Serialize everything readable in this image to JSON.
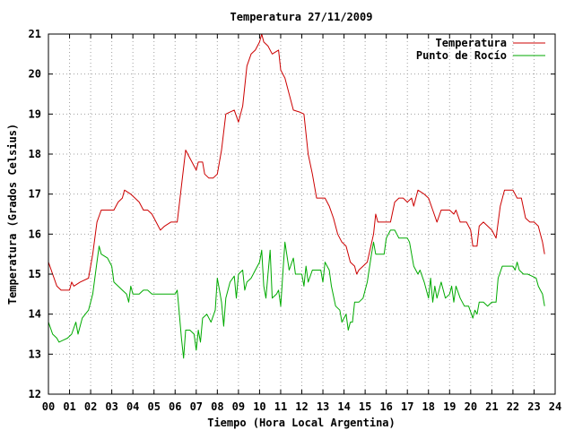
{
  "chart_data": {
    "type": "line",
    "title": "Temperatura 27/11/2009",
    "xlabel": "Tiempo (Hora Local Argentina)",
    "ylabel": "Temperatura (Grados Celsius)",
    "xlim": [
      0,
      24
    ],
    "ylim": [
      12,
      21
    ],
    "x_ticks": [
      "00",
      "01",
      "02",
      "03",
      "04",
      "05",
      "06",
      "07",
      "08",
      "09",
      "10",
      "11",
      "12",
      "13",
      "14",
      "15",
      "16",
      "17",
      "18",
      "19",
      "20",
      "21",
      "22",
      "23",
      "24"
    ],
    "y_ticks": [
      "12",
      "13",
      "14",
      "15",
      "16",
      "17",
      "18",
      "19",
      "20",
      "21"
    ],
    "grid": true,
    "legend_position": "top-right",
    "series": [
      {
        "name": "Temperatura",
        "color": "#cc0000",
        "points": [
          [
            0.0,
            15.3
          ],
          [
            0.2,
            15.0
          ],
          [
            0.4,
            14.7
          ],
          [
            0.6,
            14.6
          ],
          [
            1.0,
            14.6
          ],
          [
            1.1,
            14.8
          ],
          [
            1.2,
            14.7
          ],
          [
            1.5,
            14.8
          ],
          [
            1.9,
            14.9
          ],
          [
            2.1,
            15.5
          ],
          [
            2.3,
            16.3
          ],
          [
            2.5,
            16.6
          ],
          [
            2.9,
            16.6
          ],
          [
            3.1,
            16.6
          ],
          [
            3.3,
            16.8
          ],
          [
            3.5,
            16.9
          ],
          [
            3.6,
            17.1
          ],
          [
            3.9,
            17.0
          ],
          [
            4.1,
            16.9
          ],
          [
            4.3,
            16.8
          ],
          [
            4.5,
            16.6
          ],
          [
            4.7,
            16.6
          ],
          [
            4.9,
            16.5
          ],
          [
            5.1,
            16.3
          ],
          [
            5.3,
            16.1
          ],
          [
            5.5,
            16.2
          ],
          [
            5.8,
            16.3
          ],
          [
            6.1,
            16.3
          ],
          [
            6.3,
            17.2
          ],
          [
            6.5,
            18.1
          ],
          [
            6.7,
            17.9
          ],
          [
            6.9,
            17.7
          ],
          [
            7.0,
            17.6
          ],
          [
            7.1,
            17.8
          ],
          [
            7.3,
            17.8
          ],
          [
            7.4,
            17.5
          ],
          [
            7.6,
            17.4
          ],
          [
            7.8,
            17.4
          ],
          [
            8.0,
            17.5
          ],
          [
            8.2,
            18.1
          ],
          [
            8.4,
            19.0
          ],
          [
            8.6,
            19.05
          ],
          [
            8.8,
            19.1
          ],
          [
            9.0,
            18.8
          ],
          [
            9.2,
            19.2
          ],
          [
            9.4,
            20.2
          ],
          [
            9.6,
            20.5
          ],
          [
            9.8,
            20.6
          ],
          [
            10.0,
            20.8
          ],
          [
            10.1,
            21.0
          ],
          [
            10.2,
            20.8
          ],
          [
            10.4,
            20.7
          ],
          [
            10.6,
            20.5
          ],
          [
            10.9,
            20.6
          ],
          [
            11.0,
            20.1
          ],
          [
            11.2,
            19.9
          ],
          [
            11.4,
            19.5
          ],
          [
            11.6,
            19.1
          ],
          [
            11.9,
            19.05
          ],
          [
            12.1,
            19.0
          ],
          [
            12.3,
            18.0
          ],
          [
            12.5,
            17.5
          ],
          [
            12.7,
            16.9
          ],
          [
            13.1,
            16.9
          ],
          [
            13.3,
            16.7
          ],
          [
            13.5,
            16.4
          ],
          [
            13.7,
            16.0
          ],
          [
            13.9,
            15.8
          ],
          [
            14.1,
            15.7
          ],
          [
            14.3,
            15.3
          ],
          [
            14.5,
            15.2
          ],
          [
            14.6,
            15.0
          ],
          [
            14.7,
            15.1
          ],
          [
            14.9,
            15.2
          ],
          [
            15.1,
            15.3
          ],
          [
            15.4,
            16.0
          ],
          [
            15.5,
            16.5
          ],
          [
            15.6,
            16.3
          ],
          [
            16.0,
            16.3
          ],
          [
            16.2,
            16.3
          ],
          [
            16.4,
            16.8
          ],
          [
            16.6,
            16.9
          ],
          [
            16.8,
            16.9
          ],
          [
            17.0,
            16.8
          ],
          [
            17.2,
            16.9
          ],
          [
            17.3,
            16.7
          ],
          [
            17.5,
            17.1
          ],
          [
            17.8,
            17.0
          ],
          [
            18.0,
            16.9
          ],
          [
            18.2,
            16.6
          ],
          [
            18.4,
            16.3
          ],
          [
            18.6,
            16.6
          ],
          [
            19.0,
            16.6
          ],
          [
            19.2,
            16.5
          ],
          [
            19.3,
            16.6
          ],
          [
            19.5,
            16.3
          ],
          [
            19.8,
            16.3
          ],
          [
            20.0,
            16.1
          ],
          [
            20.1,
            15.7
          ],
          [
            20.3,
            15.7
          ],
          [
            20.4,
            16.2
          ],
          [
            20.6,
            16.3
          ],
          [
            20.8,
            16.2
          ],
          [
            21.0,
            16.1
          ],
          [
            21.2,
            15.9
          ],
          [
            21.4,
            16.7
          ],
          [
            21.6,
            17.1
          ],
          [
            21.8,
            17.1
          ],
          [
            22.0,
            17.1
          ],
          [
            22.2,
            16.9
          ],
          [
            22.4,
            16.9
          ],
          [
            22.6,
            16.4
          ],
          [
            22.8,
            16.3
          ],
          [
            23.0,
            16.3
          ],
          [
            23.2,
            16.2
          ],
          [
            23.3,
            16.0
          ],
          [
            23.4,
            15.8
          ],
          [
            23.5,
            15.5
          ]
        ]
      },
      {
        "name": "Punto de Rocío",
        "color": "#00aa00",
        "points": [
          [
            0.0,
            13.8
          ],
          [
            0.2,
            13.5
          ],
          [
            0.4,
            13.4
          ],
          [
            0.5,
            13.3
          ],
          [
            0.7,
            13.35
          ],
          [
            0.9,
            13.4
          ],
          [
            1.1,
            13.5
          ],
          [
            1.3,
            13.8
          ],
          [
            1.4,
            13.5
          ],
          [
            1.6,
            13.9
          ],
          [
            1.9,
            14.1
          ],
          [
            2.1,
            14.5
          ],
          [
            2.3,
            15.3
          ],
          [
            2.4,
            15.7
          ],
          [
            2.5,
            15.5
          ],
          [
            2.8,
            15.4
          ],
          [
            3.0,
            15.2
          ],
          [
            3.1,
            14.8
          ],
          [
            3.3,
            14.7
          ],
          [
            3.5,
            14.6
          ],
          [
            3.7,
            14.5
          ],
          [
            3.8,
            14.3
          ],
          [
            3.9,
            14.7
          ],
          [
            4.0,
            14.5
          ],
          [
            4.3,
            14.5
          ],
          [
            4.5,
            14.6
          ],
          [
            4.7,
            14.6
          ],
          [
            4.9,
            14.5
          ],
          [
            5.1,
            14.5
          ],
          [
            5.5,
            14.5
          ],
          [
            6.0,
            14.5
          ],
          [
            6.1,
            14.6
          ],
          [
            6.2,
            14.0
          ],
          [
            6.3,
            13.4
          ],
          [
            6.4,
            12.9
          ],
          [
            6.5,
            13.6
          ],
          [
            6.7,
            13.6
          ],
          [
            6.9,
            13.5
          ],
          [
            7.0,
            13.1
          ],
          [
            7.1,
            13.6
          ],
          [
            7.2,
            13.3
          ],
          [
            7.3,
            13.9
          ],
          [
            7.5,
            14.0
          ],
          [
            7.7,
            13.8
          ],
          [
            7.9,
            14.1
          ],
          [
            8.0,
            14.9
          ],
          [
            8.1,
            14.6
          ],
          [
            8.2,
            14.3
          ],
          [
            8.3,
            13.7
          ],
          [
            8.4,
            14.4
          ],
          [
            8.6,
            14.8
          ],
          [
            8.8,
            14.95
          ],
          [
            8.9,
            14.4
          ],
          [
            9.0,
            15.0
          ],
          [
            9.2,
            15.1
          ],
          [
            9.3,
            14.6
          ],
          [
            9.4,
            14.8
          ],
          [
            9.6,
            14.9
          ],
          [
            9.8,
            15.1
          ],
          [
            10.0,
            15.3
          ],
          [
            10.1,
            15.6
          ],
          [
            10.2,
            14.7
          ],
          [
            10.3,
            14.4
          ],
          [
            10.4,
            15.0
          ],
          [
            10.5,
            15.6
          ],
          [
            10.6,
            14.4
          ],
          [
            10.8,
            14.5
          ],
          [
            10.9,
            14.6
          ],
          [
            11.0,
            14.2
          ],
          [
            11.1,
            15.0
          ],
          [
            11.2,
            15.8
          ],
          [
            11.4,
            15.1
          ],
          [
            11.6,
            15.4
          ],
          [
            11.7,
            15.0
          ],
          [
            11.9,
            15.0
          ],
          [
            12.0,
            15.0
          ],
          [
            12.1,
            14.7
          ],
          [
            12.2,
            15.2
          ],
          [
            12.3,
            14.8
          ],
          [
            12.5,
            15.1
          ],
          [
            12.7,
            15.1
          ],
          [
            12.9,
            15.1
          ],
          [
            13.0,
            14.8
          ],
          [
            13.1,
            15.3
          ],
          [
            13.3,
            15.1
          ],
          [
            13.4,
            14.7
          ],
          [
            13.6,
            14.2
          ],
          [
            13.8,
            14.1
          ],
          [
            13.9,
            13.8
          ],
          [
            14.1,
            14.0
          ],
          [
            14.2,
            13.6
          ],
          [
            14.3,
            13.8
          ],
          [
            14.4,
            13.8
          ],
          [
            14.5,
            14.3
          ],
          [
            14.7,
            14.3
          ],
          [
            14.9,
            14.4
          ],
          [
            15.1,
            14.8
          ],
          [
            15.3,
            15.5
          ],
          [
            15.4,
            15.8
          ],
          [
            15.5,
            15.5
          ],
          [
            15.7,
            15.5
          ],
          [
            15.9,
            15.5
          ],
          [
            16.0,
            15.9
          ],
          [
            16.2,
            16.1
          ],
          [
            16.4,
            16.1
          ],
          [
            16.6,
            15.9
          ],
          [
            16.8,
            15.9
          ],
          [
            17.0,
            15.9
          ],
          [
            17.1,
            15.8
          ],
          [
            17.3,
            15.2
          ],
          [
            17.5,
            15.0
          ],
          [
            17.6,
            15.1
          ],
          [
            17.8,
            14.8
          ],
          [
            17.9,
            14.6
          ],
          [
            18.0,
            14.4
          ],
          [
            18.1,
            14.9
          ],
          [
            18.2,
            14.3
          ],
          [
            18.3,
            14.7
          ],
          [
            18.4,
            14.4
          ],
          [
            18.6,
            14.8
          ],
          [
            18.8,
            14.4
          ],
          [
            19.0,
            14.5
          ],
          [
            19.1,
            14.7
          ],
          [
            19.2,
            14.3
          ],
          [
            19.3,
            14.7
          ],
          [
            19.5,
            14.4
          ],
          [
            19.7,
            14.2
          ],
          [
            19.9,
            14.2
          ],
          [
            20.1,
            13.9
          ],
          [
            20.2,
            14.1
          ],
          [
            20.3,
            14.0
          ],
          [
            20.4,
            14.3
          ],
          [
            20.6,
            14.3
          ],
          [
            20.8,
            14.2
          ],
          [
            21.0,
            14.3
          ],
          [
            21.2,
            14.3
          ],
          [
            21.3,
            14.9
          ],
          [
            21.5,
            15.2
          ],
          [
            22.0,
            15.2
          ],
          [
            22.1,
            15.1
          ],
          [
            22.2,
            15.3
          ],
          [
            22.3,
            15.1
          ],
          [
            22.5,
            15.0
          ],
          [
            22.7,
            15.0
          ],
          [
            22.9,
            14.95
          ],
          [
            23.1,
            14.9
          ],
          [
            23.2,
            14.7
          ],
          [
            23.3,
            14.6
          ],
          [
            23.4,
            14.5
          ],
          [
            23.5,
            14.2
          ]
        ]
      }
    ]
  }
}
